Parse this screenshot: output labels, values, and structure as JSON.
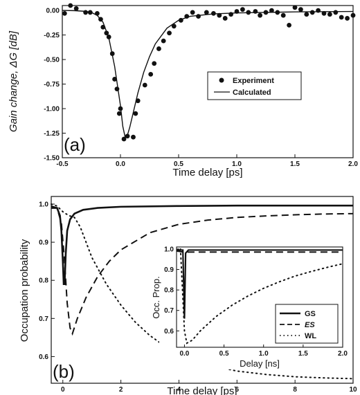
{
  "chart_data": [
    {
      "panel_label": "(a)",
      "type": "scatter",
      "xlabel": "Time delay [ps]",
      "ylabel": "Gain change, ΔG [dB]",
      "xlim": [
        -0.5,
        2.0
      ],
      "ylim": [
        -1.5,
        0.05
      ],
      "xticks": [
        -0.5,
        0.0,
        0.5,
        1.0,
        1.5,
        2.0
      ],
      "xtick_labels": [
        "-0.5",
        "0.0",
        "0.5",
        "1.0",
        "1.5",
        "2.0"
      ],
      "yticks": [
        0.0,
        -0.25,
        -0.5,
        -0.75,
        -1.0,
        -1.25,
        -1.5
      ],
      "ytick_labels": [
        "0.00",
        "-0.25",
        "-0.50",
        "-0.75",
        "-1.00",
        "-1.25",
        "-1.50"
      ],
      "legend_position": "center-right",
      "series": [
        {
          "name": "Experiment",
          "kind": "scatter",
          "points": [
            [
              -0.48,
              -0.03
            ],
            [
              -0.43,
              0.05
            ],
            [
              -0.38,
              0.02
            ],
            [
              -0.3,
              -0.02
            ],
            [
              -0.26,
              -0.02
            ],
            [
              -0.2,
              -0.03
            ],
            [
              -0.17,
              -0.09
            ],
            [
              -0.15,
              -0.17
            ],
            [
              -0.12,
              -0.23
            ],
            [
              -0.1,
              -0.27
            ],
            [
              -0.07,
              -0.44
            ],
            [
              -0.05,
              -0.7
            ],
            [
              -0.03,
              -0.8
            ],
            [
              -0.01,
              -1.05
            ],
            [
              0.0,
              -1.0
            ],
            [
              0.03,
              -1.31
            ],
            [
              0.06,
              -1.28
            ],
            [
              0.11,
              -1.29
            ],
            [
              0.13,
              -1.05
            ],
            [
              0.15,
              -0.92
            ],
            [
              0.21,
              -0.76
            ],
            [
              0.26,
              -0.65
            ],
            [
              0.29,
              -0.54
            ],
            [
              0.33,
              -0.39
            ],
            [
              0.37,
              -0.31
            ],
            [
              0.42,
              -0.23
            ],
            [
              0.46,
              -0.16
            ],
            [
              0.52,
              -0.1
            ],
            [
              0.57,
              -0.06
            ],
            [
              0.62,
              -0.02
            ],
            [
              0.67,
              -0.06
            ],
            [
              0.74,
              -0.02
            ],
            [
              0.8,
              -0.03
            ],
            [
              0.85,
              -0.05
            ],
            [
              0.9,
              -0.08
            ],
            [
              0.95,
              -0.04
            ],
            [
              1.0,
              -0.01
            ],
            [
              1.05,
              0.01
            ],
            [
              1.1,
              -0.02
            ],
            [
              1.16,
              -0.01
            ],
            [
              1.2,
              -0.05
            ],
            [
              1.25,
              -0.02
            ],
            [
              1.3,
              0.0
            ],
            [
              1.35,
              -0.02
            ],
            [
              1.4,
              -0.05
            ],
            [
              1.45,
              -0.15
            ],
            [
              1.5,
              0.03
            ],
            [
              1.55,
              0.01
            ],
            [
              1.6,
              -0.04
            ],
            [
              1.65,
              -0.02
            ],
            [
              1.7,
              0.0
            ],
            [
              1.75,
              -0.03
            ],
            [
              1.8,
              -0.04
            ],
            [
              1.85,
              -0.02
            ],
            [
              1.9,
              -0.07
            ],
            [
              1.95,
              -0.08
            ],
            [
              2.0,
              -0.05
            ]
          ]
        },
        {
          "name": "Calculated",
          "kind": "line",
          "points": [
            [
              -0.5,
              0.0
            ],
            [
              -0.4,
              -0.002
            ],
            [
              -0.3,
              -0.009
            ],
            [
              -0.25,
              -0.02
            ],
            [
              -0.2,
              -0.05
            ],
            [
              -0.15,
              -0.12
            ],
            [
              -0.1,
              -0.28
            ],
            [
              -0.05,
              -0.57
            ],
            [
              0.0,
              -0.97
            ],
            [
              0.02,
              -1.18
            ],
            [
              0.04,
              -1.29
            ],
            [
              0.06,
              -1.27
            ],
            [
              0.08,
              -1.19
            ],
            [
              0.1,
              -1.09
            ],
            [
              0.15,
              -0.84
            ],
            [
              0.2,
              -0.63
            ],
            [
              0.25,
              -0.47
            ],
            [
              0.3,
              -0.34
            ],
            [
              0.4,
              -0.18
            ],
            [
              0.5,
              -0.1
            ],
            [
              0.6,
              -0.06
            ],
            [
              0.8,
              -0.035
            ],
            [
              1.0,
              -0.025
            ],
            [
              1.5,
              -0.015
            ],
            [
              2.0,
              -0.01
            ]
          ]
        }
      ]
    },
    {
      "panel_label": "(b)",
      "type": "line",
      "xlabel": "Time delay [ps]",
      "ylabel": "Occupation probability",
      "xlim": [
        -0.4,
        10.0
      ],
      "ylim": [
        0.53,
        1.02
      ],
      "xticks": [
        0,
        2,
        4,
        6,
        8,
        10
      ],
      "xtick_labels": [
        "0",
        "2",
        "4",
        "6",
        "8",
        "10"
      ],
      "yticks": [
        1.0,
        0.9,
        0.8,
        0.7,
        0.6
      ],
      "ytick_labels": [
        "1.0",
        "0.9",
        "0.8",
        "0.7",
        "0.6"
      ],
      "series": [
        {
          "style": "solid",
          "points": [
            [
              -0.4,
              0.99
            ],
            [
              -0.2,
              0.99
            ],
            [
              -0.1,
              0.97
            ],
            [
              -0.05,
              0.93
            ],
            [
              0.0,
              0.85
            ],
            [
              0.03,
              0.79
            ],
            [
              0.06,
              0.79
            ],
            [
              0.1,
              0.87
            ],
            [
              0.15,
              0.93
            ],
            [
              0.25,
              0.96
            ],
            [
              0.4,
              0.975
            ],
            [
              0.7,
              0.985
            ],
            [
              1.2,
              0.99
            ],
            [
              2.0,
              0.993
            ],
            [
              4.0,
              0.995
            ],
            [
              6.0,
              0.996
            ],
            [
              8.0,
              0.996
            ],
            [
              10.0,
              0.996
            ]
          ]
        },
        {
          "style": "dashed",
          "points": [
            [
              -0.4,
              0.995
            ],
            [
              -0.2,
              0.99
            ],
            [
              -0.05,
              0.95
            ],
            [
              0.05,
              0.86
            ],
            [
              0.15,
              0.74
            ],
            [
              0.25,
              0.675
            ],
            [
              0.33,
              0.66
            ],
            [
              0.5,
              0.7
            ],
            [
              0.8,
              0.755
            ],
            [
              1.2,
              0.81
            ],
            [
              1.6,
              0.85
            ],
            [
              2.0,
              0.88
            ],
            [
              3.0,
              0.925
            ],
            [
              4.0,
              0.947
            ],
            [
              5.0,
              0.958
            ],
            [
              6.0,
              0.965
            ],
            [
              7.0,
              0.969
            ],
            [
              8.0,
              0.972
            ],
            [
              9.0,
              0.974
            ],
            [
              10.0,
              0.975
            ]
          ]
        },
        {
          "style": "dotted",
          "points": [
            [
              -0.4,
              1.0
            ],
            [
              -0.2,
              0.995
            ],
            [
              0.0,
              0.98
            ],
            [
              0.2,
              0.97
            ],
            [
              0.4,
              0.965
            ],
            [
              0.6,
              0.94
            ],
            [
              0.8,
              0.9
            ],
            [
              1.0,
              0.86
            ],
            [
              1.5,
              0.79
            ],
            [
              2.0,
              0.735
            ],
            [
              2.5,
              0.69
            ],
            [
              3.0,
              0.655
            ],
            [
              3.5,
              0.628
            ],
            [
              4.0,
              0.607
            ],
            [
              5.0,
              0.578
            ],
            [
              6.0,
              0.562
            ],
            [
              7.0,
              0.553
            ],
            [
              8.0,
              0.547
            ],
            [
              9.0,
              0.544
            ],
            [
              10.0,
              0.542
            ]
          ]
        }
      ],
      "inset": {
        "type": "line",
        "xlabel": "Delay [ns]",
        "ylabel": "Occ. Prop.",
        "xlim": [
          -0.1,
          2.0
        ],
        "ylim": [
          0.52,
          1.01
        ],
        "xticks": [
          0.0,
          0.5,
          1.0,
          1.5,
          2.0
        ],
        "xtick_labels": [
          "0.0",
          "0.5",
          "1.0",
          "1.5",
          "2.0"
        ],
        "yticks": [
          1.0,
          0.9,
          0.8,
          0.7,
          0.6
        ],
        "ytick_labels": [
          "1.0",
          "0.9",
          "0.8",
          "0.7",
          "0.6"
        ],
        "legend_position": "lower-right",
        "series": [
          {
            "name": "GS",
            "style": "solid",
            "points": [
              [
                -0.1,
                0.995
              ],
              [
                -0.02,
                0.995
              ],
              [
                0.0,
                0.66
              ],
              [
                0.015,
                0.98
              ],
              [
                0.05,
                0.995
              ],
              [
                2.0,
                0.995
              ]
            ]
          },
          {
            "name": "ES",
            "style": "dashed",
            "points": [
              [
                -0.1,
                0.99
              ],
              [
                0.0,
                0.985
              ],
              [
                0.05,
                0.985
              ],
              [
                2.0,
                0.985
              ]
            ]
          },
          {
            "name": "WL",
            "style": "dotted",
            "points": [
              [
                -0.05,
                1.0
              ],
              [
                0.0,
                0.6
              ],
              [
                0.03,
                0.54
              ],
              [
                0.1,
                0.555
              ],
              [
                0.2,
                0.6
              ],
              [
                0.4,
                0.67
              ],
              [
                0.6,
                0.725
              ],
              [
                0.8,
                0.77
              ],
              [
                1.0,
                0.808
              ],
              [
                1.2,
                0.84
              ],
              [
                1.4,
                0.868
              ],
              [
                1.6,
                0.89
              ],
              [
                1.8,
                0.91
              ],
              [
                2.0,
                0.928
              ]
            ]
          }
        ]
      }
    }
  ]
}
